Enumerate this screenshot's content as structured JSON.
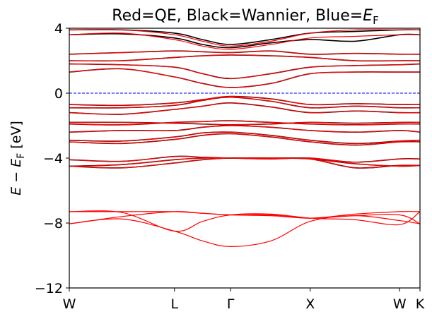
{
  "chart_data": {
    "type": "line",
    "title": {
      "prefix": "Red=QE, Black=Wannier, Blue=",
      "symbol": "E",
      "subscript": "F"
    },
    "ylabel": {
      "symbol_e": "E",
      "minus": " − ",
      "symbol_ef": "E",
      "subscript": "F",
      "unit": " [eV]"
    },
    "xlim": [
      0,
      1
    ],
    "ylim": [
      -12,
      4
    ],
    "yticks": [
      4,
      0,
      -4,
      -8,
      -12
    ],
    "ytick_labels": [
      "4",
      "0",
      "−4",
      "−8",
      "−12"
    ],
    "kpoints": [
      {
        "label": "W",
        "x": 0.0
      },
      {
        "label": "L",
        "x": 0.3
      },
      {
        "label": "Γ",
        "x": 0.46
      },
      {
        "label": "X",
        "x": 0.687
      },
      {
        "label": "W",
        "x": 0.942
      },
      {
        "label": "K",
        "x": 1.0
      }
    ],
    "fermi_level": 0,
    "colors": {
      "qe": "#ff0000",
      "wannier": "#000000",
      "fermi": "#0000ff"
    },
    "series": [
      {
        "name": "QE",
        "color": "#ff0000"
      },
      {
        "name": "Wannier",
        "color": "#000000"
      }
    ],
    "x_grid": [
      0.0,
      0.15,
      0.3,
      0.38,
      0.46,
      0.575,
      0.687,
      0.815,
      0.942,
      1.0
    ],
    "qe_bands": [
      [
        -8.05,
        -7.75,
        -8.5,
        -9.1,
        -9.45,
        -9.1,
        -7.9,
        -7.55,
        -7.85,
        -8.05
      ],
      [
        -8.05,
        -7.6,
        -7.3,
        -7.4,
        -7.5,
        -7.55,
        -7.7,
        -7.55,
        -7.5,
        -8.05
      ],
      [
        -7.3,
        -7.3,
        -7.3,
        -7.4,
        -7.5,
        -7.5,
        -7.7,
        -7.45,
        -7.3,
        -7.3
      ],
      [
        -7.3,
        -7.35,
        -8.5,
        -7.9,
        -7.5,
        -7.45,
        -7.7,
        -7.8,
        -8.1,
        -7.3
      ],
      [
        -4.5,
        -4.6,
        -4.3,
        -4.1,
        -4.0,
        -4.0,
        -4.05,
        -4.35,
        -4.5,
        -4.45
      ],
      [
        -4.5,
        -4.4,
        -4.1,
        -4.0,
        -4.0,
        -4.0,
        -4.05,
        -4.6,
        -4.45,
        -4.45
      ],
      [
        -4.1,
        -4.2,
        -3.9,
        -3.95,
        -4.0,
        -4.05,
        -4.0,
        -4.25,
        -4.05,
        -4.05
      ],
      [
        -3.0,
        -3.1,
        -2.85,
        -2.6,
        -2.5,
        -2.7,
        -3.0,
        -3.2,
        -3.0,
        -3.0
      ],
      [
        -2.9,
        -2.95,
        -2.7,
        -2.45,
        -2.4,
        -2.6,
        -2.9,
        -3.1,
        -2.95,
        -2.9
      ],
      [
        -2.4,
        -2.3,
        -2.3,
        -2.1,
        -2.0,
        -2.1,
        -2.3,
        -2.4,
        -2.3,
        -2.4
      ],
      [
        -1.9,
        -1.95,
        -1.8,
        -1.75,
        -1.7,
        -1.8,
        -1.9,
        -1.95,
        -1.9,
        -1.9
      ],
      [
        -1.8,
        -1.8,
        -1.85,
        -1.9,
        -1.95,
        -1.9,
        -1.8,
        -1.85,
        -1.8,
        -1.8
      ],
      [
        -1.2,
        -1.3,
        -1.0,
        -0.8,
        -0.6,
        -0.85,
        -1.2,
        -1.1,
        -1.2,
        -1.2
      ],
      [
        -0.9,
        -0.9,
        -0.75,
        -0.45,
        -0.25,
        -0.5,
        -0.9,
        -0.8,
        -0.9,
        -0.9
      ],
      [
        -0.7,
        -0.75,
        -0.6,
        -0.4,
        -0.2,
        -0.35,
        -0.7,
        -0.65,
        -0.7,
        -0.7
      ],
      [
        1.3,
        1.5,
        1.0,
        0.6,
        0.35,
        0.6,
        1.2,
        1.3,
        1.3,
        1.3
      ],
      [
        1.8,
        1.75,
        1.6,
        1.2,
        0.9,
        1.2,
        1.6,
        1.7,
        1.75,
        1.8
      ],
      [
        2.0,
        2.0,
        2.2,
        2.3,
        2.35,
        2.3,
        2.2,
        2.0,
        2.0,
        2.0
      ],
      [
        2.4,
        2.5,
        2.6,
        2.55,
        2.5,
        2.6,
        2.4,
        2.45,
        2.4,
        2.4
      ],
      [
        3.6,
        3.7,
        3.3,
        2.9,
        2.7,
        3.0,
        3.4,
        3.5,
        3.6,
        3.6
      ],
      [
        3.9,
        3.9,
        3.6,
        3.2,
        2.9,
        3.2,
        3.7,
        3.9,
        3.9,
        3.9
      ]
    ],
    "wannier_bands": [
      [
        -4.5,
        -4.6,
        -4.3,
        -4.1,
        -4.0,
        -4.0,
        -4.05,
        -4.35,
        -4.5,
        -4.45
      ],
      [
        -4.5,
        -4.4,
        -4.1,
        -4.0,
        -4.0,
        -4.0,
        -4.05,
        -4.6,
        -4.45,
        -4.45
      ],
      [
        -4.1,
        -4.2,
        -3.9,
        -3.95,
        -4.0,
        -4.05,
        -4.0,
        -4.25,
        -4.05,
        -4.05
      ],
      [
        -3.0,
        -3.1,
        -2.85,
        -2.6,
        -2.5,
        -2.7,
        -3.0,
        -3.2,
        -3.0,
        -3.0
      ],
      [
        -2.9,
        -2.95,
        -2.7,
        -2.45,
        -2.4,
        -2.6,
        -2.9,
        -3.1,
        -2.95,
        -2.9
      ],
      [
        -2.4,
        -2.3,
        -2.3,
        -2.1,
        -2.0,
        -2.1,
        -2.3,
        -2.4,
        -2.3,
        -2.4
      ],
      [
        -1.9,
        -1.95,
        -1.8,
        -1.75,
        -1.7,
        -1.8,
        -1.9,
        -1.95,
        -1.9,
        -1.9
      ],
      [
        -1.8,
        -1.8,
        -1.85,
        -1.9,
        -1.95,
        -1.9,
        -1.8,
        -1.85,
        -1.8,
        -1.8
      ],
      [
        -1.2,
        -1.3,
        -1.0,
        -0.8,
        -0.6,
        -0.85,
        -1.2,
        -1.1,
        -1.2,
        -1.2
      ],
      [
        -0.9,
        -0.9,
        -0.75,
        -0.45,
        -0.25,
        -0.5,
        -0.9,
        -0.8,
        -0.9,
        -0.9
      ],
      [
        -0.7,
        -0.75,
        -0.6,
        -0.4,
        -0.2,
        -0.35,
        -0.7,
        -0.65,
        -0.7,
        -0.7
      ],
      [
        1.3,
        1.5,
        1.0,
        0.6,
        0.35,
        0.6,
        1.2,
        1.3,
        1.3,
        1.3
      ],
      [
        1.8,
        1.75,
        1.6,
        1.2,
        0.9,
        1.2,
        1.6,
        1.7,
        1.75,
        1.8
      ],
      [
        2.0,
        2.0,
        2.2,
        2.3,
        2.35,
        2.3,
        2.2,
        2.0,
        2.0,
        2.0
      ],
      [
        2.4,
        2.5,
        2.6,
        2.55,
        2.5,
        2.6,
        2.4,
        2.45,
        2.4,
        2.4
      ],
      [
        3.6,
        3.65,
        3.4,
        3.0,
        2.8,
        3.1,
        3.3,
        3.2,
        3.6,
        3.6
      ],
      [
        3.9,
        3.9,
        3.7,
        3.3,
        3.0,
        3.3,
        3.7,
        3.8,
        3.9,
        3.9
      ]
    ]
  }
}
